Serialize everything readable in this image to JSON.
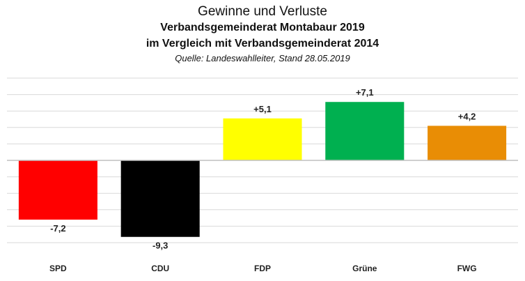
{
  "title": "Gewinne und Verluste",
  "subtitle1": "Verbandsgemeinderat Montabaur 2019",
  "subtitle2": "im Vergleich mit Verbandsgemeinderat 2014",
  "source": "Quelle: Landeswahlleiter,  Stand 28.05.2019",
  "chart_data": {
    "type": "bar",
    "categories": [
      "SPD",
      "CDU",
      "FDP",
      "Grüne",
      "FWG"
    ],
    "values": [
      -7.2,
      -9.3,
      5.1,
      7.1,
      4.2
    ],
    "labels": [
      "-7,2",
      "-9,3",
      "+5,1",
      "+7,1",
      "+4,2"
    ],
    "colors": [
      "#ff0000",
      "#000000",
      "#ffff00",
      "#00b050",
      "#e98d05"
    ],
    "ylim": [
      -10,
      10
    ],
    "grid": true
  }
}
